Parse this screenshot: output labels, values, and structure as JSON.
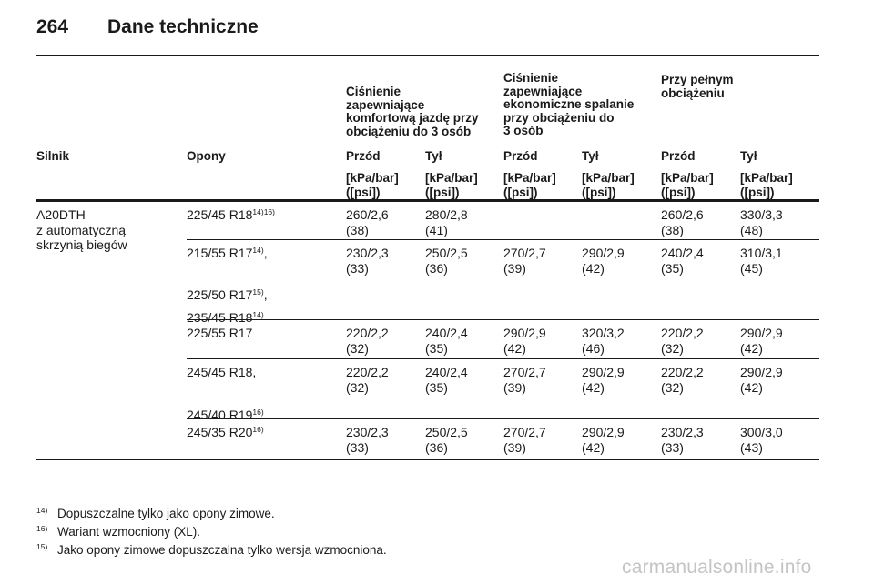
{
  "page": {
    "number": "264",
    "title": "Dane techniczne"
  },
  "group_headers": {
    "comfort": "Ciśnienie\nzapewniające\nkomfortową jazdę przy\nobciążeniu do 3 osób",
    "eco": "Ciśnienie\nzapewniające\nekonomiczne spalanie\nprzy obciążeniu do\n3 osób",
    "full": "Przy pełnym\nobciążeniu"
  },
  "columns": {
    "engine": "Silnik",
    "tires": "Opony",
    "comfort_front": "Przód",
    "comfort_rear": "Tył",
    "eco_front": "Przód",
    "eco_rear": "Tył",
    "full_front": "Przód",
    "full_rear": "Tył",
    "unit": "[kPa/bar]\n([psi])"
  },
  "engine_cell": "A20DTH\nz automatyczną\nskrzynią biegów",
  "rows": [
    {
      "tires": [
        {
          "text": "225/45 R18",
          "sup": "14)16)"
        }
      ],
      "values": [
        "260/2,6\n(38)",
        "280/2,8\n(41)",
        "–",
        "–",
        "260/2,6\n(38)",
        "330/3,3\n(48)"
      ]
    },
    {
      "tires": [
        {
          "text": "215/55 R17",
          "sup": "14)",
          "tail": ","
        },
        {
          "text": "225/50 R17",
          "sup": "15)",
          "tail": ","
        },
        {
          "text": "235/45 R18",
          "sup": "14)"
        }
      ],
      "values": [
        "230/2,3\n(33)",
        "250/2,5\n(36)",
        "270/2,7\n(39)",
        "290/2,9\n(42)",
        "240/2,4\n(35)",
        "310/3,1\n(45)"
      ]
    },
    {
      "tires": [
        {
          "text": "225/55 R17"
        }
      ],
      "values": [
        "220/2,2\n(32)",
        "240/2,4\n(35)",
        "290/2,9\n(42)",
        "320/3,2\n(46)",
        "220/2,2\n(32)",
        "290/2,9\n(42)"
      ]
    },
    {
      "tires": [
        {
          "text": "245/45 R18,"
        },
        {
          "text": "245/40 R19",
          "sup": "16)"
        }
      ],
      "values": [
        "220/2,2\n(32)",
        "240/2,4\n(35)",
        "270/2,7\n(39)",
        "290/2,9\n(42)",
        "220/2,2\n(32)",
        "290/2,9\n(42)"
      ]
    },
    {
      "tires": [
        {
          "text": "245/35 R20",
          "sup": "16)"
        }
      ],
      "values": [
        "230/2,3\n(33)",
        "250/2,5\n(36)",
        "270/2,7\n(39)",
        "290/2,9\n(42)",
        "230/2,3\n(33)",
        "300/3,0\n(43)"
      ]
    }
  ],
  "footnotes": [
    {
      "num": "14)",
      "text": "Dopuszczalne tylko jako opony zimowe."
    },
    {
      "num": "16)",
      "text": "Wariant wzmocniony (XL)."
    },
    {
      "num": "15)",
      "text": "Jako opony zimowe dopuszczalna tylko wersja wzmocniona."
    }
  ],
  "watermark": "carmanualsonline.info"
}
